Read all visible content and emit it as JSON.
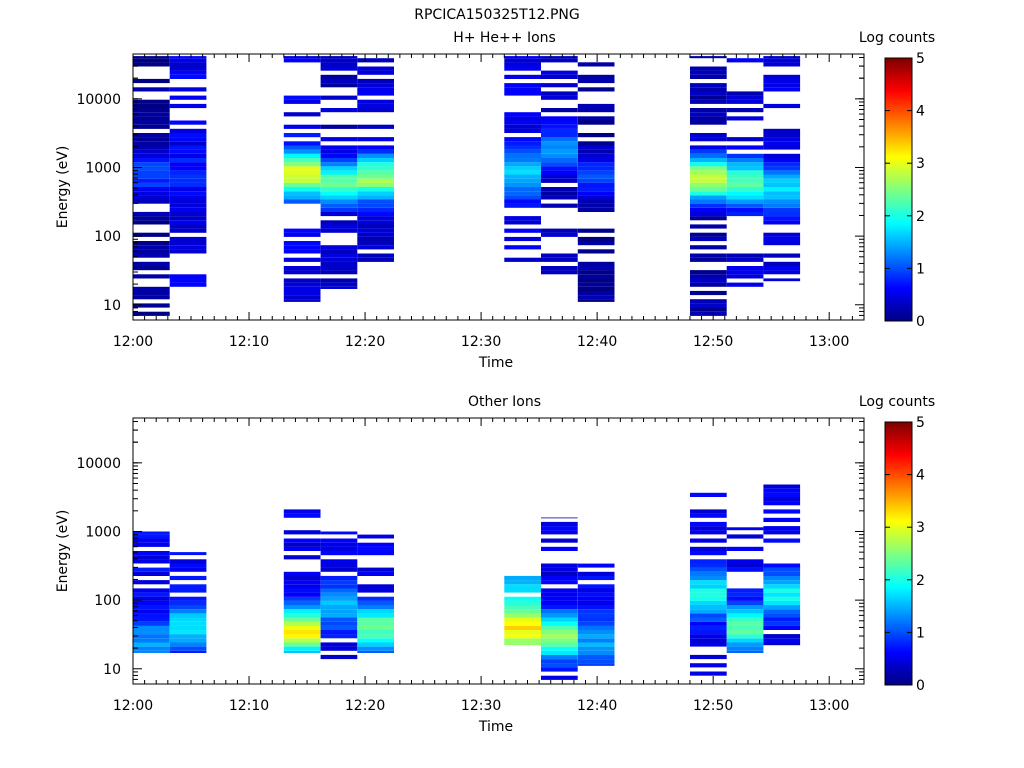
{
  "figure_title": "RPCICA150325T12.PNG",
  "chart_data": [
    {
      "type": "heatmap",
      "title": "H+ He++ Ions",
      "xlabel": "Time",
      "ylabel": "Energy (eV)",
      "x_ticks": [
        "12:00",
        "12:10",
        "12:20",
        "12:30",
        "12:40",
        "12:50",
        "13:00"
      ],
      "x_range": [
        "12:00",
        "13:03"
      ],
      "y_scale": "log",
      "y_range": [
        6,
        45000
      ],
      "y_ticks": [
        "10",
        "100",
        "1000",
        "10000"
      ],
      "colorbar": {
        "label": "Log counts",
        "range": [
          0,
          5
        ],
        "ticks": [
          "0",
          "1",
          "2",
          "3",
          "4",
          "5"
        ]
      },
      "columns": [
        {
          "start": "12:00:00",
          "end": "12:03:10",
          "energy_range": [
            6,
            42000
          ],
          "peak_energy": 800,
          "peak_log_counts": 1.0,
          "low_band_counts": 0.1
        },
        {
          "start": "12:03:10",
          "end": "12:06:20",
          "energy_range": [
            17,
            42000
          ],
          "peak_energy": 800,
          "peak_log_counts": 0.8,
          "low_band_counts": 0.5
        },
        {
          "start": "12:13:00",
          "end": "12:16:10",
          "energy_range": [
            11,
            42000
          ],
          "peak_energy": 800,
          "peak_log_counts": 3.0,
          "low_band_counts": 0.5
        },
        {
          "start": "12:16:10",
          "end": "12:19:20",
          "energy_range": [
            17,
            42000
          ],
          "peak_energy": 600,
          "peak_log_counts": 2.3,
          "low_band_counts": 0.3
        },
        {
          "start": "12:19:20",
          "end": "12:22:30",
          "energy_range": [
            32,
            42000
          ],
          "peak_energy": 700,
          "peak_log_counts": 2.6,
          "low_band_counts": 0.4
        },
        {
          "start": "12:32:00",
          "end": "12:35:10",
          "energy_range": [
            27,
            42000
          ],
          "peak_energy": 800,
          "peak_log_counts": 1.6,
          "low_band_counts": 0.5
        },
        {
          "start": "12:35:10",
          "end": "12:38:20",
          "energy_range": [
            22,
            42000
          ],
          "peak_energy": 1800,
          "peak_log_counts": 1.3,
          "low_band_counts": 0.3
        },
        {
          "start": "12:38:20",
          "end": "12:41:30",
          "energy_range": [
            11,
            42000
          ],
          "peak_energy": 800,
          "peak_log_counts": 0.9,
          "low_band_counts": 0.1
        },
        {
          "start": "12:48:00",
          "end": "12:51:10",
          "energy_range": [
            6,
            42000
          ],
          "peak_energy": 700,
          "peak_log_counts": 3.0,
          "low_band_counts": 0.2
        },
        {
          "start": "12:51:10",
          "end": "12:54:20",
          "energy_range": [
            17,
            42000
          ],
          "peak_energy": 600,
          "peak_log_counts": 2.4,
          "low_band_counts": 0.4
        },
        {
          "start": "12:54:20",
          "end": "12:57:30",
          "energy_range": [
            22,
            42000
          ],
          "peak_energy": 500,
          "peak_log_counts": 1.8,
          "low_band_counts": 0.4
        }
      ]
    },
    {
      "type": "heatmap",
      "title": "Other Ions",
      "xlabel": "Time",
      "ylabel": "Energy (eV)",
      "x_ticks": [
        "12:00",
        "12:10",
        "12:20",
        "12:30",
        "12:40",
        "12:50",
        "13:00"
      ],
      "x_range": [
        "12:00",
        "13:03"
      ],
      "y_scale": "log",
      "y_range": [
        6,
        45000
      ],
      "y_ticks": [
        "10",
        "100",
        "1000",
        "10000"
      ],
      "colorbar": {
        "label": "Log counts",
        "range": [
          0,
          5
        ],
        "ticks": [
          "0",
          "1",
          "2",
          "3",
          "4",
          "5"
        ]
      },
      "columns": [
        {
          "start": "12:00:00",
          "end": "12:03:10",
          "energy_range": [
            17,
            1000
          ],
          "peak_energy": 25,
          "peak_log_counts": 1.4,
          "low_band_counts": 0.6
        },
        {
          "start": "12:03:10",
          "end": "12:06:20",
          "energy_range": [
            17,
            500
          ],
          "peak_energy": 40,
          "peak_log_counts": 1.8,
          "low_band_counts": 0.6
        },
        {
          "start": "12:13:00",
          "end": "12:16:10",
          "energy_range": [
            17,
            2200
          ],
          "peak_energy": 35,
          "peak_log_counts": 3.2,
          "low_band_counts": 0.5
        },
        {
          "start": "12:16:10",
          "end": "12:19:20",
          "energy_range": [
            11,
            1000
          ],
          "peak_energy": 80,
          "peak_log_counts": 1.5,
          "low_band_counts": 0.5
        },
        {
          "start": "12:19:20",
          "end": "12:22:30",
          "energy_range": [
            17,
            900
          ],
          "peak_energy": 40,
          "peak_log_counts": 2.4,
          "low_band_counts": 0.5
        },
        {
          "start": "12:32:00",
          "end": "12:35:10",
          "energy_range": [
            22,
            240
          ],
          "peak_energy": 40,
          "peak_log_counts": 3.2,
          "low_band_counts": 1.5
        },
        {
          "start": "12:35:10",
          "end": "12:38:20",
          "energy_range": [
            6,
            1600
          ],
          "peak_energy": 30,
          "peak_log_counts": 2.6,
          "low_band_counts": 0.5
        },
        {
          "start": "12:38:20",
          "end": "12:41:30",
          "energy_range": [
            11,
            340
          ],
          "peak_energy": 25,
          "peak_log_counts": 1.4,
          "low_band_counts": 0.6
        },
        {
          "start": "12:48:00",
          "end": "12:51:10",
          "energy_range": [
            6,
            4000
          ],
          "peak_energy": 120,
          "peak_log_counts": 2.0,
          "low_band_counts": 0.5
        },
        {
          "start": "12:51:10",
          "end": "12:54:20",
          "energy_range": [
            17,
            1150
          ],
          "peak_energy": 40,
          "peak_log_counts": 2.4,
          "low_band_counts": 0.5
        },
        {
          "start": "12:54:20",
          "end": "12:57:30",
          "energy_range": [
            22,
            5000
          ],
          "peak_energy": 120,
          "peak_log_counts": 1.9,
          "low_band_counts": 0.5
        }
      ]
    }
  ]
}
